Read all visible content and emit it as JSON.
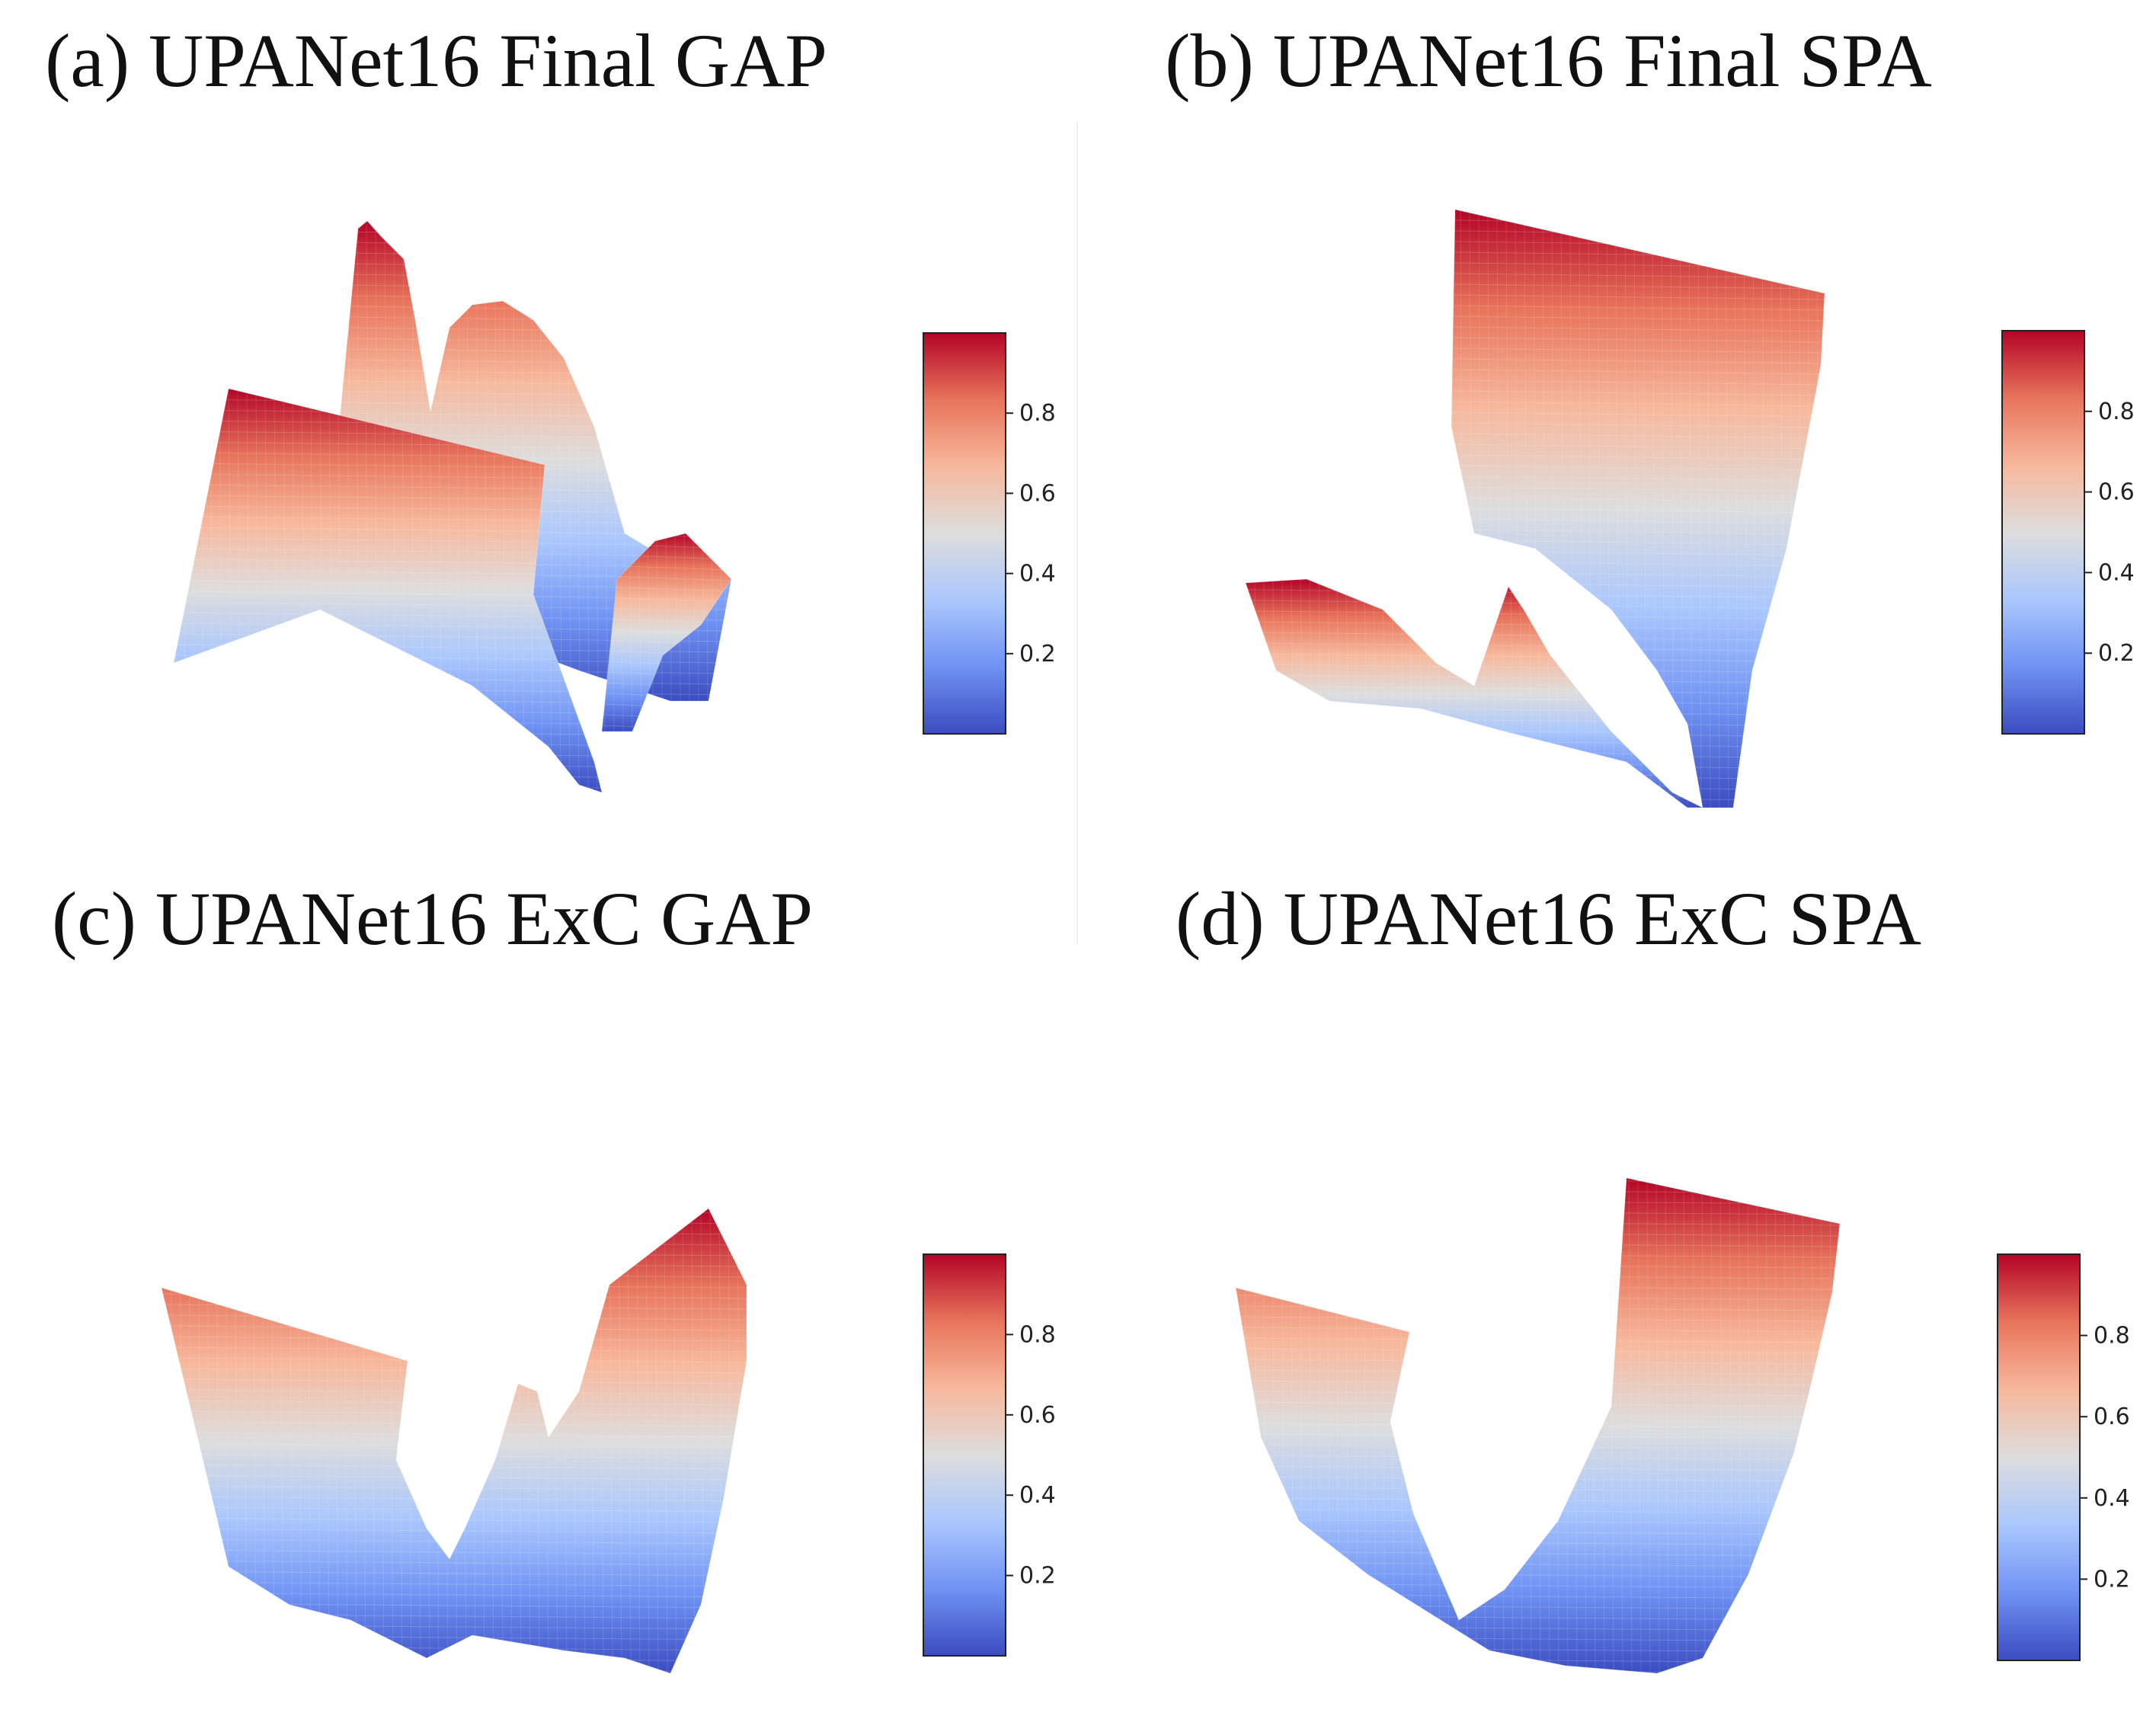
{
  "figure": {
    "panels": [
      {
        "id": "a",
        "title": "(a) UPANet16 Final GAP"
      },
      {
        "id": "b",
        "title": "(b) UPANet16 Final SPA"
      },
      {
        "id": "c",
        "title": "(c) UPANet16 ExC GAP"
      },
      {
        "id": "d",
        "title": "(d) UPANet16 ExC SPA"
      }
    ]
  },
  "colormap": {
    "name": "coolwarm",
    "stops": [
      "#3b4cc0",
      "#6f92f3",
      "#aac7fd",
      "#dddddd",
      "#f7b89c",
      "#e7745b",
      "#b40426"
    ]
  },
  "chart_data": [
    {
      "type": "surface",
      "title": "(a) UPANet16 Final GAP",
      "colorbar": {
        "range": [
          0,
          1
        ],
        "ticks": [
          0.2,
          0.4,
          0.6,
          0.8
        ],
        "tick_labels": [
          "0.2",
          "0.4",
          "0.6",
          "0.8"
        ]
      },
      "zlim": [
        0,
        1
      ]
    },
    {
      "type": "surface",
      "title": "(b) UPANet16 Final SPA",
      "colorbar": {
        "range": [
          0,
          1
        ],
        "ticks": [
          0.2,
          0.4,
          0.6,
          0.8
        ],
        "tick_labels": [
          "0.2",
          "0.4",
          "0.6",
          "0.8"
        ]
      },
      "zlim": [
        0,
        1
      ]
    },
    {
      "type": "surface",
      "title": "(c) UPANet16 ExC GAP",
      "colorbar": {
        "range": [
          0,
          1
        ],
        "ticks": [
          0.2,
          0.4,
          0.6,
          0.8
        ],
        "tick_labels": [
          "0.2",
          "0.4",
          "0.6",
          "0.8"
        ]
      },
      "zlim": [
        0,
        1
      ]
    },
    {
      "type": "surface",
      "title": "(d) UPANet16 ExC SPA",
      "colorbar": {
        "range": [
          0,
          1
        ],
        "ticks": [
          0.2,
          0.4,
          0.6,
          0.8
        ],
        "tick_labels": [
          "0.2",
          "0.4",
          "0.6",
          "0.8"
        ]
      },
      "zlim": [
        0,
        1
      ]
    }
  ]
}
